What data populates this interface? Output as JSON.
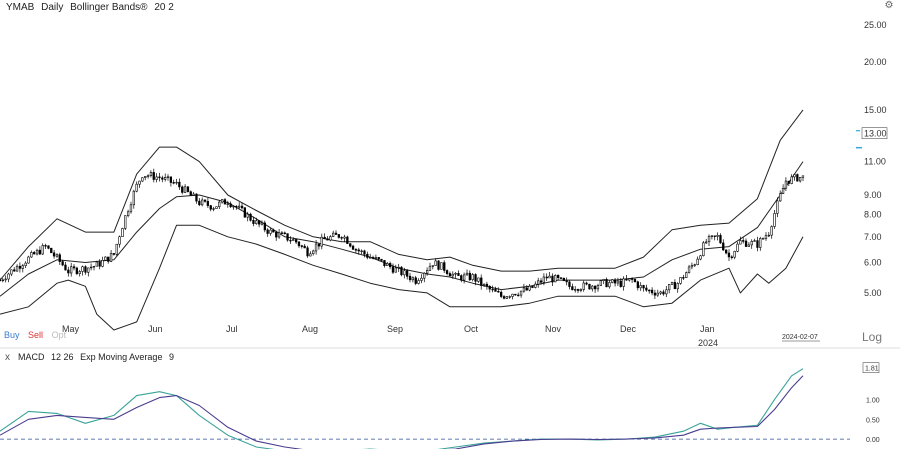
{
  "header": {
    "symbol": "YMAB",
    "interval": "Daily",
    "indicator": "Bollinger Bands®",
    "indicator_params": "20 2"
  },
  "trade": {
    "buy": "Buy",
    "sell": "Sell",
    "opt": "Opt"
  },
  "scale_button": "Log",
  "cursor_date": "2024-02-07",
  "year_label": "2024",
  "macd": {
    "close": "x",
    "label": "MACD",
    "params": "12 26",
    "signal_label": "Exp Moving Average",
    "signal_param": "9"
  },
  "colors": {
    "candle": "#000000",
    "band": "#222222",
    "macd": "#3aa39a",
    "signal": "#4b3d8f",
    "zero": "#2b4b9a",
    "price_callout": "#33a7e8"
  },
  "chart_data": [
    {
      "type": "candlestick",
      "title": "",
      "scale": "log",
      "ylim": [
        4.3,
        27
      ],
      "yticks": [
        5.0,
        6.0,
        7.0,
        8.0,
        9.0,
        11.0,
        15.0,
        20.0,
        25.0
      ],
      "ytick_labels": [
        "5.00",
        "6.00",
        "7.00",
        "8.00",
        "9.00",
        "11.00",
        "15.00",
        "20.00",
        "25.00"
      ],
      "x_labels": [
        "May",
        "Jun",
        "Jul",
        "Aug",
        "Sep",
        "Oct",
        "Nov",
        "Dec",
        "Jan"
      ],
      "last_price": 13.0,
      "last_price_label": "13.00",
      "close_series": {
        "x": [
          0,
          8,
          16,
          24,
          30,
          34,
          40,
          48,
          50,
          56,
          62,
          70,
          75,
          80,
          90,
          95,
          100,
          104,
          108,
          114,
          120,
          125,
          130,
          136,
          140,
          146,
          152,
          156,
          160,
          166,
          170,
          176,
          180,
          186,
          192,
          196,
          200,
          206,
          212,
          218,
          222,
          226,
          232,
          238,
          244,
          248,
          252,
          256,
          260,
          266,
          270,
          276,
          280
        ],
        "y": [
          5.4,
          6.0,
          6.6,
          5.7,
          5.8,
          5.9,
          6.3,
          9.5,
          10.2,
          10.0,
          9.6,
          8.6,
          8.4,
          8.7,
          7.6,
          7.2,
          7.0,
          6.8,
          6.4,
          6.9,
          7.1,
          6.5,
          6.2,
          5.9,
          5.7,
          5.4,
          6.0,
          5.8,
          5.5,
          5.5,
          5.2,
          4.9,
          5.0,
          5.1,
          5.5,
          5.4,
          5.2,
          5.2,
          5.3,
          5.3,
          5.4,
          5.1,
          5.0,
          5.3,
          6.0,
          6.8,
          7.0,
          6.2,
          6.8,
          6.7,
          7.2,
          9.8,
          10.0
        ]
      },
      "bollinger": {
        "upper": {
          "x": [
            0,
            10,
            20,
            30,
            40,
            48,
            56,
            62,
            70,
            80,
            90,
            100,
            110,
            120,
            130,
            140,
            150,
            158,
            166,
            176,
            186,
            196,
            206,
            216,
            226,
            236,
            246,
            256,
            266,
            274,
            282
          ],
          "y": [
            5.4,
            6.6,
            7.8,
            7.2,
            7.2,
            10.2,
            12.0,
            12.0,
            11.0,
            9.0,
            8.2,
            7.5,
            7.0,
            6.8,
            6.8,
            6.3,
            6.1,
            6.2,
            5.9,
            5.7,
            5.7,
            5.8,
            5.8,
            5.8,
            6.2,
            7.3,
            7.5,
            7.6,
            8.8,
            12.5,
            15.0
          ]
        },
        "middle": {
          "x": [
            0,
            10,
            20,
            30,
            40,
            48,
            56,
            62,
            70,
            80,
            90,
            100,
            110,
            120,
            130,
            140,
            150,
            158,
            166,
            176,
            186,
            196,
            206,
            216,
            226,
            236,
            246,
            256,
            266,
            274,
            282
          ],
          "y": [
            4.9,
            5.6,
            6.1,
            6.0,
            6.1,
            7.2,
            8.3,
            8.9,
            9.0,
            8.6,
            7.8,
            7.0,
            6.8,
            6.5,
            6.2,
            5.8,
            5.6,
            5.5,
            5.3,
            5.1,
            5.2,
            5.4,
            5.4,
            5.4,
            5.5,
            6.1,
            6.5,
            6.6,
            7.4,
            9.0,
            11.0
          ]
        },
        "lower": {
          "x": [
            0,
            10,
            20,
            24,
            30,
            34,
            40,
            48,
            56,
            62,
            70,
            80,
            90,
            100,
            110,
            120,
            130,
            140,
            150,
            158,
            166,
            176,
            186,
            196,
            206,
            216,
            226,
            236,
            246,
            256,
            260,
            266,
            270,
            276,
            282
          ],
          "y": [
            4.4,
            4.6,
            5.3,
            5.4,
            5.2,
            4.4,
            4.0,
            4.2,
            5.8,
            7.5,
            7.5,
            7.0,
            6.7,
            6.3,
            5.9,
            5.6,
            5.3,
            5.1,
            5.0,
            4.6,
            4.6,
            4.6,
            4.7,
            4.9,
            4.9,
            4.9,
            4.6,
            4.7,
            5.4,
            5.8,
            5.0,
            5.6,
            5.3,
            5.8,
            7.0
          ]
        }
      }
    },
    {
      "type": "line",
      "title": "",
      "ylim": [
        -0.25,
        1.95
      ],
      "yticks": [
        0.0,
        0.5,
        1.0
      ],
      "ytick_labels": [
        "0.00",
        "0.50",
        "1.00"
      ],
      "last_value_label": "1.81",
      "series": [
        {
          "name": "MACD",
          "x": [
            0,
            10,
            20,
            30,
            40,
            48,
            56,
            62,
            70,
            80,
            90,
            100,
            110,
            120,
            130,
            140,
            150,
            160,
            170,
            180,
            190,
            200,
            210,
            220,
            230,
            240,
            246,
            252,
            258,
            266,
            272,
            278,
            282
          ],
          "y": [
            0.2,
            0.7,
            0.65,
            0.4,
            0.6,
            1.1,
            1.2,
            1.1,
            0.6,
            0.1,
            -0.2,
            -0.3,
            -0.35,
            -0.3,
            -0.25,
            -0.3,
            -0.3,
            -0.2,
            -0.1,
            -0.05,
            0.0,
            0.0,
            -0.02,
            0.0,
            0.05,
            0.2,
            0.4,
            0.25,
            0.3,
            0.35,
            1.0,
            1.6,
            1.78
          ]
        },
        {
          "name": "Exp Moving Average 9",
          "x": [
            0,
            10,
            20,
            30,
            40,
            48,
            56,
            62,
            70,
            80,
            90,
            100,
            110,
            120,
            130,
            140,
            150,
            160,
            170,
            180,
            190,
            200,
            210,
            220,
            230,
            240,
            246,
            252,
            258,
            266,
            272,
            278,
            282
          ],
          "y": [
            0.1,
            0.5,
            0.6,
            0.55,
            0.5,
            0.8,
            1.05,
            1.1,
            0.85,
            0.3,
            -0.05,
            -0.2,
            -0.3,
            -0.3,
            -0.27,
            -0.3,
            -0.3,
            -0.25,
            -0.12,
            -0.05,
            -0.01,
            0.0,
            -0.01,
            0.0,
            0.03,
            0.1,
            0.25,
            0.28,
            0.3,
            0.32,
            0.75,
            1.3,
            1.6
          ]
        }
      ]
    }
  ]
}
